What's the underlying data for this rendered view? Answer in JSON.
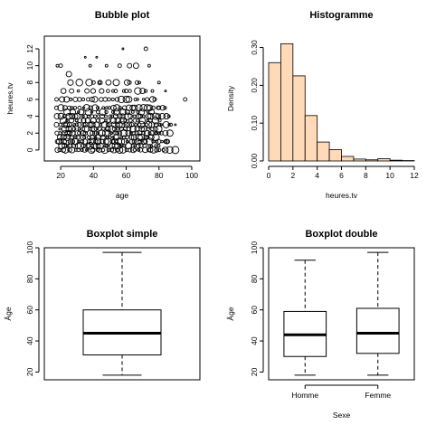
{
  "chart_data": [
    {
      "type": "scatter",
      "subtype": "bubble",
      "title": "Bubble plot",
      "xlabel": "age",
      "ylabel": "heures.tv",
      "xlim": [
        10,
        105
      ],
      "ylim": [
        -1.3,
        13.5
      ],
      "xticks": [
        20,
        40,
        60,
        80,
        100
      ],
      "yticks": [
        0,
        2,
        4,
        6,
        8,
        10,
        12
      ],
      "points": [
        {
          "x": 18,
          "y": 10,
          "r": 1.5
        },
        {
          "x": 20,
          "y": 10,
          "r": 2
        },
        {
          "x": 25,
          "y": 9,
          "r": 3
        },
        {
          "x": 35,
          "y": 11,
          "r": 1
        },
        {
          "x": 42,
          "y": 11,
          "r": 1
        },
        {
          "x": 38,
          "y": 10,
          "r": 1.5
        },
        {
          "x": 58,
          "y": 12,
          "r": 1
        },
        {
          "x": 72,
          "y": 12,
          "r": 2
        },
        {
          "x": 48,
          "y": 10,
          "r": 1.5
        },
        {
          "x": 56,
          "y": 10,
          "r": 2
        },
        {
          "x": 62,
          "y": 10,
          "r": 2.5
        },
        {
          "x": 66,
          "y": 10,
          "r": 3
        },
        {
          "x": 74,
          "y": 10,
          "r": 1.5
        },
        {
          "x": 40,
          "y": 8,
          "r": 2
        },
        {
          "x": 44,
          "y": 8,
          "r": 2.5
        },
        {
          "x": 62,
          "y": 8,
          "r": 2
        },
        {
          "x": 68,
          "y": 8,
          "r": 1.5
        },
        {
          "x": 80,
          "y": 8,
          "r": 1.5
        },
        {
          "x": 52,
          "y": 7,
          "r": 1.5
        },
        {
          "x": 60,
          "y": 7,
          "r": 2
        },
        {
          "x": 70,
          "y": 7,
          "r": 3
        },
        {
          "x": 76,
          "y": 7,
          "r": 1.5
        },
        {
          "x": 84,
          "y": 7,
          "r": 1
        },
        {
          "x": 96,
          "y": 6,
          "r": 2
        },
        {
          "x": 80,
          "y": 5,
          "r": 2
        },
        {
          "x": 86,
          "y": 4,
          "r": 1.5
        },
        {
          "x": 90,
          "y": 3,
          "r": 1
        },
        {
          "x": 90,
          "y": 0,
          "r": 4
        },
        {
          "x": 84,
          "y": 1,
          "r": 2
        },
        {
          "x": 78,
          "y": 2,
          "r": 2
        }
      ],
      "dense_rows": [
        {
          "y": 0,
          "x_from": 18,
          "x_to": 86,
          "count": 38
        },
        {
          "y": 0.5,
          "x_from": 20,
          "x_to": 80,
          "count": 30
        },
        {
          "y": 1,
          "x_from": 18,
          "x_to": 86,
          "count": 36
        },
        {
          "y": 1.5,
          "x_from": 20,
          "x_to": 78,
          "count": 28
        },
        {
          "y": 2,
          "x_from": 18,
          "x_to": 86,
          "count": 36
        },
        {
          "y": 2.5,
          "x_from": 20,
          "x_to": 80,
          "count": 28
        },
        {
          "y": 3,
          "x_from": 18,
          "x_to": 88,
          "count": 36
        },
        {
          "y": 3.5,
          "x_from": 22,
          "x_to": 80,
          "count": 24
        },
        {
          "y": 4,
          "x_from": 18,
          "x_to": 84,
          "count": 32
        },
        {
          "y": 4.5,
          "x_from": 24,
          "x_to": 76,
          "count": 18
        },
        {
          "y": 5,
          "x_from": 18,
          "x_to": 84,
          "count": 30
        },
        {
          "y": 6,
          "x_from": 18,
          "x_to": 78,
          "count": 24
        },
        {
          "y": 7,
          "x_from": 22,
          "x_to": 72,
          "count": 12
        },
        {
          "y": 8,
          "x_from": 26,
          "x_to": 66,
          "count": 8
        }
      ]
    },
    {
      "type": "bar",
      "subtype": "histogram",
      "title": "Histogramme",
      "xlabel": "heures.tv",
      "ylabel": "Density",
      "bin_edges": [
        0,
        1,
        2,
        3,
        4,
        5,
        6,
        7,
        8,
        9,
        10,
        11,
        12
      ],
      "values": [
        0.26,
        0.31,
        0.225,
        0.12,
        0.05,
        0.03,
        0.012,
        0.005,
        0.003,
        0.006,
        0.002,
        0.001
      ],
      "xlim": [
        0,
        12
      ],
      "ylim": [
        0,
        0.33
      ],
      "xticks": [
        0,
        2,
        4,
        6,
        8,
        10,
        12
      ],
      "yticks": [
        0.0,
        0.1,
        0.2,
        0.3
      ],
      "bar_color": "#ffdab9"
    },
    {
      "type": "boxplot",
      "title": "Boxplot simple",
      "xlabel": "",
      "ylabel": "Âge",
      "ylim": [
        15,
        100
      ],
      "yticks": [
        20,
        40,
        60,
        80,
        100
      ],
      "boxes": [
        {
          "name": "",
          "min": 18,
          "q1": 31,
          "median": 45,
          "q3": 60,
          "max": 97
        }
      ]
    },
    {
      "type": "boxplot",
      "title": "Boxplot double",
      "xlabel": "Sexe",
      "ylabel": "Âge",
      "ylim": [
        15,
        100
      ],
      "yticks": [
        20,
        40,
        60,
        80,
        100
      ],
      "boxes": [
        {
          "name": "Homme",
          "min": 18,
          "q1": 30,
          "median": 44,
          "q3": 59,
          "max": 92
        },
        {
          "name": "Femme",
          "min": 18,
          "q1": 32,
          "median": 45,
          "q3": 61,
          "max": 97
        }
      ]
    }
  ]
}
